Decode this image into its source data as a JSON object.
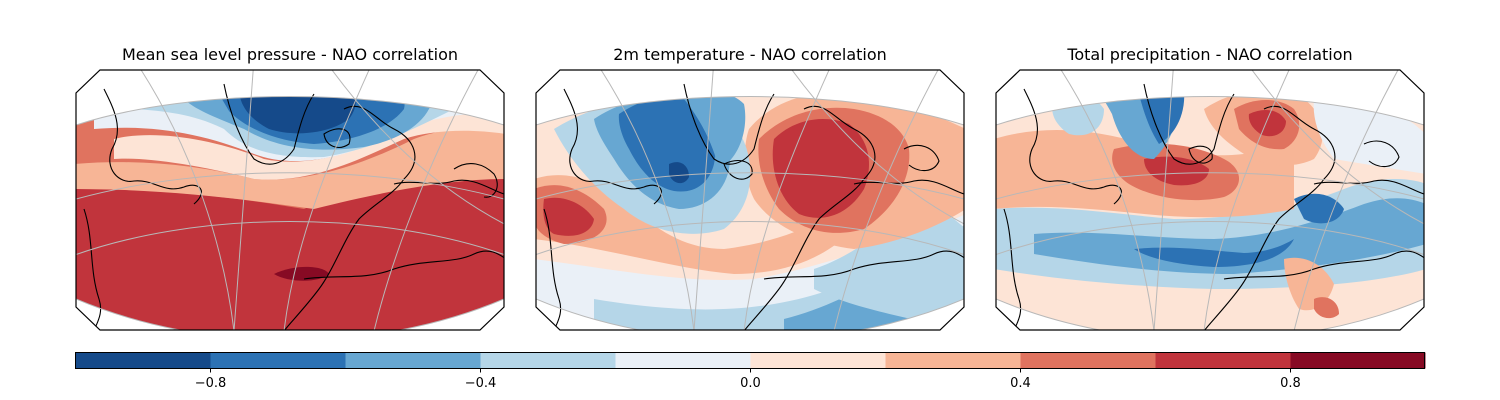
{
  "panels": [
    {
      "title": "Mean sea level pressure - NAO correlation"
    },
    {
      "title": "2m temperature - NAO correlation"
    },
    {
      "title": "Total precipitation - NAO correlation"
    }
  ],
  "colorbar": {
    "ticks": [
      "−0.8",
      "−0.4",
      "0.0",
      "0.4",
      "0.8"
    ],
    "tick_values": [
      -0.8,
      -0.4,
      0.0,
      0.4,
      0.8
    ],
    "range": [
      -1.0,
      1.0
    ],
    "levels": [
      -1.0,
      -0.8,
      -0.6,
      -0.4,
      -0.2,
      0.0,
      0.2,
      0.4,
      0.6,
      0.8,
      1.0
    ],
    "colors": [
      "#154a8a",
      "#2c72b4",
      "#67a7d2",
      "#b5d6e8",
      "#eaf0f7",
      "#fde4d6",
      "#f7b596",
      "#e0735f",
      "#c1343c",
      "#870a24"
    ]
  }
}
